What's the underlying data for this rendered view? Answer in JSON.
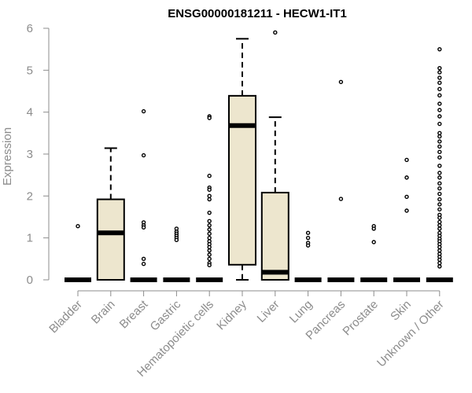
{
  "chart_data": {
    "type": "boxplot",
    "title": "ENSG00000181211 - HECW1-IT1",
    "xlabel": "",
    "ylabel": "Expression",
    "ylim": [
      0,
      6
    ],
    "yticks": [
      0,
      1,
      2,
      3,
      4,
      5,
      6
    ],
    "grid": false,
    "legend": "none",
    "box_fill": "#EDE6CE",
    "categories": [
      "Bladder",
      "Brain",
      "Breast",
      "Gastric",
      "Hematopoietic cells",
      "Kidney",
      "Liver",
      "Lung",
      "Pancreas",
      "Prostate",
      "Skin",
      "Unknown / Other"
    ],
    "boxes": [
      {
        "category": "Bladder",
        "q1": 0,
        "median": 0,
        "q3": 0,
        "whisker_low": 0,
        "whisker_high": 0,
        "outliers": [
          1.28
        ]
      },
      {
        "category": "Brain",
        "q1": 0,
        "median": 1.12,
        "q3": 1.92,
        "whisker_low": 0,
        "whisker_high": 3.14,
        "outliers": []
      },
      {
        "category": "Breast",
        "q1": 0,
        "median": 0,
        "q3": 0,
        "whisker_low": 0,
        "whisker_high": 0,
        "outliers": [
          4.02,
          2.97,
          1.37,
          1.3,
          1.25,
          0.5,
          0.38
        ]
      },
      {
        "category": "Gastric",
        "q1": 0,
        "median": 0,
        "q3": 0,
        "whisker_low": 0,
        "whisker_high": 0,
        "outliers": [
          1.22,
          1.15,
          1.1,
          1.05,
          1.0,
          0.95
        ]
      },
      {
        "category": "Hematopoietic cells",
        "q1": 0,
        "median": 0,
        "q3": 0,
        "whisker_low": 0,
        "whisker_high": 0,
        "outliers": [
          3.9,
          3.86,
          2.48,
          2.2,
          2.15,
          2.0,
          1.92,
          1.6,
          1.4,
          1.3,
          1.2,
          1.1,
          1.0,
          0.92,
          0.85,
          0.78,
          0.7,
          0.6,
          0.5,
          0.4,
          0.35
        ]
      },
      {
        "category": "Kidney",
        "q1": 0.36,
        "median": 3.68,
        "q3": 4.39,
        "whisker_low": 0,
        "whisker_high": 5.75,
        "outliers": []
      },
      {
        "category": "Liver",
        "q1": 0,
        "median": 0.18,
        "q3": 2.08,
        "whisker_low": 0,
        "whisker_high": 3.88,
        "outliers": [
          5.9
        ]
      },
      {
        "category": "Lung",
        "q1": 0,
        "median": 0,
        "q3": 0,
        "whisker_low": 0,
        "whisker_high": 0,
        "outliers": [
          1.12,
          1.0,
          0.88,
          0.82
        ]
      },
      {
        "category": "Pancreas",
        "q1": 0,
        "median": 0,
        "q3": 0,
        "whisker_low": 0,
        "whisker_high": 0,
        "outliers": [
          4.72,
          1.93
        ]
      },
      {
        "category": "Prostate",
        "q1": 0,
        "median": 0,
        "q3": 0,
        "whisker_low": 0,
        "whisker_high": 0,
        "outliers": [
          1.28,
          1.22,
          0.9
        ]
      },
      {
        "category": "Skin",
        "q1": 0,
        "median": 0,
        "q3": 0,
        "whisker_low": 0,
        "whisker_high": 0,
        "outliers": [
          2.86,
          2.44,
          1.98,
          1.65
        ]
      },
      {
        "category": "Unknown / Other",
        "q1": 0,
        "median": 0,
        "q3": 0,
        "whisker_low": 0,
        "whisker_high": 0,
        "outliers": [
          5.5,
          5.05,
          4.95,
          4.82,
          4.7,
          4.55,
          4.4,
          4.2,
          4.05,
          3.9,
          3.72,
          3.5,
          3.42,
          3.3,
          3.18,
          3.05,
          2.92,
          2.72,
          2.55,
          2.44,
          2.3,
          2.18,
          2.05,
          1.92,
          1.8,
          1.68,
          1.55,
          1.48,
          1.38,
          1.3,
          1.22,
          1.12,
          1.05,
          0.98,
          0.92,
          0.85,
          0.78,
          0.7,
          0.62,
          0.55,
          0.48,
          0.4,
          0.32
        ]
      }
    ]
  }
}
